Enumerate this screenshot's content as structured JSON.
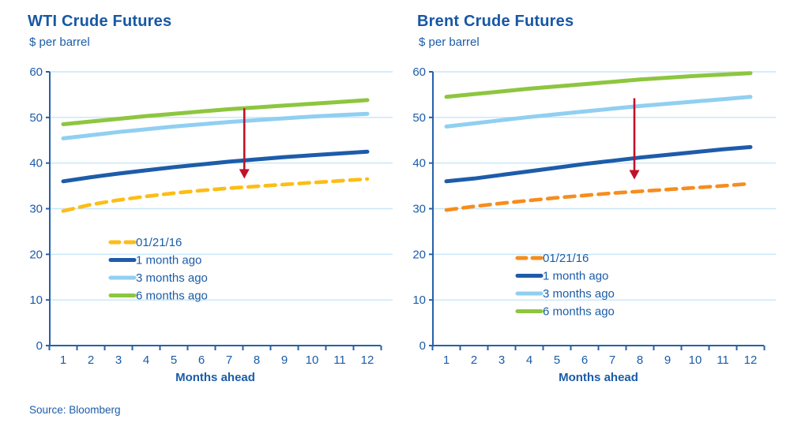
{
  "source": "Source: Bloomberg",
  "palette": {
    "text_blue": "#1b5ca8",
    "axis_blue": "#2461ac",
    "grid_blue": "#c6e6f8",
    "arrow_red": "#c1112b"
  },
  "chart_data": [
    {
      "type": "line",
      "title": "WTI Crude Futures",
      "subtitle": "$ per barrel",
      "xlabel": "Months ahead",
      "x": [
        1,
        2,
        3,
        4,
        5,
        6,
        7,
        8,
        9,
        10,
        11,
        12
      ],
      "ylim": [
        0,
        60
      ],
      "yticks": [
        0,
        10,
        20,
        30,
        40,
        50,
        60
      ],
      "grid": "horizontal",
      "legend_position": "inside-lower-left",
      "series": [
        {
          "name": "01/21/16",
          "color": "#fcbd17",
          "dashed": true,
          "values": [
            29.5,
            30.9,
            31.9,
            32.7,
            33.4,
            34.0,
            34.5,
            34.9,
            35.3,
            35.7,
            36.1,
            36.5
          ]
        },
        {
          "name": "1 month ago",
          "color": "#1d5ca9",
          "dashed": false,
          "values": [
            36.0,
            36.9,
            37.7,
            38.4,
            39.1,
            39.7,
            40.3,
            40.8,
            41.3,
            41.7,
            42.1,
            42.5
          ]
        },
        {
          "name": "3 months ago",
          "color": "#90cff1",
          "dashed": false,
          "values": [
            45.4,
            46.1,
            46.8,
            47.4,
            48.0,
            48.5,
            49.0,
            49.4,
            49.8,
            50.2,
            50.5,
            50.8
          ]
        },
        {
          "name": "6 months ago",
          "color": "#8dc63f",
          "dashed": false,
          "values": [
            48.5,
            49.1,
            49.7,
            50.3,
            50.8,
            51.3,
            51.8,
            52.2,
            52.6,
            53.0,
            53.4,
            53.8
          ]
        }
      ],
      "annotation_arrow": {
        "month": 7.55,
        "from_value": 52.0,
        "to_value": 36.6
      }
    },
    {
      "type": "line",
      "title": "Brent Crude Futures",
      "subtitle": "$ per barrel",
      "xlabel": "Months ahead",
      "x": [
        1,
        2,
        3,
        4,
        5,
        6,
        7,
        8,
        9,
        10,
        11,
        12
      ],
      "ylim": [
        0,
        60
      ],
      "yticks": [
        0,
        10,
        20,
        30,
        40,
        50,
        60
      ],
      "grid": "horizontal",
      "legend_position": "inside-lower-left",
      "series": [
        {
          "name": "01/21/16",
          "color": "#f68d1e",
          "dashed": true,
          "values": [
            29.7,
            30.5,
            31.2,
            31.8,
            32.4,
            32.9,
            33.4,
            33.8,
            34.2,
            34.6,
            35.0,
            35.5
          ]
        },
        {
          "name": "1 month ago",
          "color": "#1d5ca9",
          "dashed": false,
          "values": [
            36.0,
            36.6,
            37.4,
            38.2,
            39.0,
            39.8,
            40.5,
            41.2,
            41.8,
            42.4,
            43.0,
            43.5
          ]
        },
        {
          "name": "3 months ago",
          "color": "#90cff1",
          "dashed": false,
          "values": [
            48.0,
            48.7,
            49.4,
            50.1,
            50.7,
            51.3,
            51.9,
            52.5,
            53.0,
            53.5,
            54.0,
            54.5
          ]
        },
        {
          "name": "6 months ago",
          "color": "#8dc63f",
          "dashed": false,
          "values": [
            54.5,
            55.1,
            55.7,
            56.3,
            56.8,
            57.3,
            57.8,
            58.3,
            58.7,
            59.1,
            59.4,
            59.7
          ]
        }
      ],
      "annotation_arrow": {
        "month": 7.8,
        "from_value": 54.2,
        "to_value": 36.4
      }
    }
  ]
}
